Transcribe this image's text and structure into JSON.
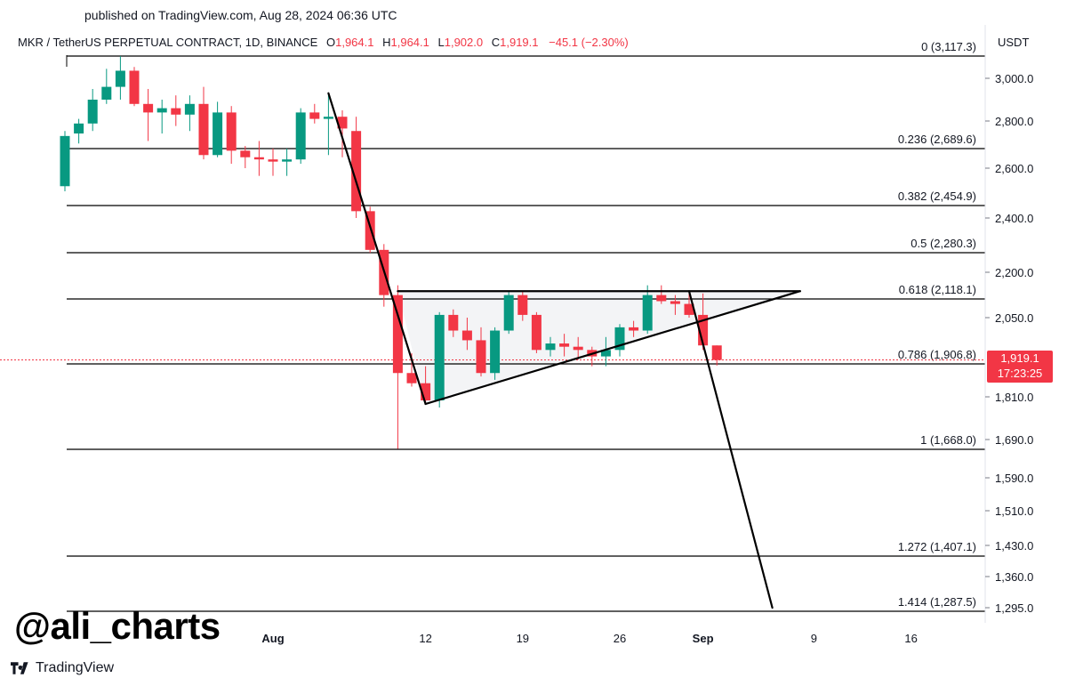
{
  "published": "published on TradingView.com, Aug 28, 2024 06:36 UTC",
  "header": {
    "symbol": "MKR / TetherUS PERPETUAL CONTRACT, 1D, BINANCE",
    "o_label": "O",
    "o_value": "1,964.1",
    "h_label": "H",
    "h_value": "1,964.1",
    "l_label": "L",
    "l_value": "1,902.0",
    "c_label": "C",
    "c_value": "1,919.1",
    "change": "−45.1 (−2.30%)"
  },
  "currency": "USDT",
  "last_price": {
    "price": "1,919.1",
    "countdown": "17:23:25"
  },
  "watermark": "@ali_charts",
  "brand": "TradingView",
  "colors": {
    "up": "#089981",
    "down": "#f23645",
    "line": "#000000",
    "triangle_fill": "#e9ebef"
  },
  "chart_data": {
    "type": "candlestick",
    "y_ticks": [
      "3,000.0",
      "2,800.0",
      "2,600.0",
      "2,400.0",
      "2,200.0",
      "2,050.0",
      "1,810.0",
      "1,690.0",
      "1,590.0",
      "1,510.0",
      "1,430.0",
      "1,360.0",
      "1,295.0"
    ],
    "x_ticks": [
      "Aug",
      "12",
      "19",
      "26",
      "Sep",
      "9",
      "16"
    ],
    "fib_levels": [
      {
        "label": "0 (3,117.3)",
        "value": 3117.3
      },
      {
        "label": "0.236 (2,689.6)",
        "value": 2689.6
      },
      {
        "label": "0.382 (2,454.9)",
        "value": 2454.9
      },
      {
        "label": "0.5 (2,280.3)",
        "value": 2280.3
      },
      {
        "label": "0.618 (2,118.1)",
        "value": 2118.1
      },
      {
        "label": "0.786 (1,906.8)",
        "value": 1906.8
      },
      {
        "label": "1 (1,668.0)",
        "value": 1668.0
      },
      {
        "label": "1.272 (1,407.1)",
        "value": 1407.1
      },
      {
        "label": "1.414 (1,287.5)",
        "value": 1287.5
      }
    ],
    "candles": [
      {
        "date": "2024-07-17",
        "o": 2530,
        "h": 2760,
        "l": 2510,
        "c": 2740
      },
      {
        "date": "2024-07-18",
        "o": 2750,
        "h": 2810,
        "l": 2710,
        "c": 2790
      },
      {
        "date": "2024-07-19",
        "o": 2790,
        "h": 2950,
        "l": 2760,
        "c": 2900
      },
      {
        "date": "2024-07-20",
        "o": 2900,
        "h": 3050,
        "l": 2880,
        "c": 2960
      },
      {
        "date": "2024-07-21",
        "o": 2960,
        "h": 3117,
        "l": 2900,
        "c": 3040
      },
      {
        "date": "2024-07-22",
        "o": 3040,
        "h": 3060,
        "l": 2870,
        "c": 2880
      },
      {
        "date": "2024-07-23",
        "o": 2880,
        "h": 2950,
        "l": 2720,
        "c": 2840
      },
      {
        "date": "2024-07-24",
        "o": 2840,
        "h": 2900,
        "l": 2750,
        "c": 2860
      },
      {
        "date": "2024-07-25",
        "o": 2860,
        "h": 2920,
        "l": 2780,
        "c": 2830
      },
      {
        "date": "2024-07-26",
        "o": 2830,
        "h": 2920,
        "l": 2760,
        "c": 2880
      },
      {
        "date": "2024-07-27",
        "o": 2880,
        "h": 2960,
        "l": 2640,
        "c": 2660
      },
      {
        "date": "2024-07-28",
        "o": 2660,
        "h": 2890,
        "l": 2650,
        "c": 2840
      },
      {
        "date": "2024-07-29",
        "o": 2840,
        "h": 2870,
        "l": 2620,
        "c": 2680
      },
      {
        "date": "2024-07-30",
        "o": 2680,
        "h": 2700,
        "l": 2600,
        "c": 2650
      },
      {
        "date": "2024-07-31",
        "o": 2650,
        "h": 2720,
        "l": 2570,
        "c": 2640
      },
      {
        "date": "2024-08-01",
        "o": 2640,
        "h": 2690,
        "l": 2570,
        "c": 2630
      },
      {
        "date": "2024-08-02",
        "o": 2630,
        "h": 2690,
        "l": 2570,
        "c": 2640
      },
      {
        "date": "2024-08-03",
        "o": 2640,
        "h": 2860,
        "l": 2620,
        "c": 2840
      },
      {
        "date": "2024-08-04",
        "o": 2840,
        "h": 2880,
        "l": 2790,
        "c": 2810
      },
      {
        "date": "2024-08-05",
        "o": 2810,
        "h": 2930,
        "l": 2660,
        "c": 2820
      },
      {
        "date": "2024-08-06",
        "o": 2820,
        "h": 2850,
        "l": 2650,
        "c": 2770
      },
      {
        "date": "2024-08-07",
        "o": 2760,
        "h": 2820,
        "l": 2400,
        "c": 2430
      },
      {
        "date": "2024-08-08",
        "o": 2430,
        "h": 2450,
        "l": 2280,
        "c": 2290
      },
      {
        "date": "2024-08-09",
        "o": 2290,
        "h": 2310,
        "l": 2090,
        "c": 2130
      },
      {
        "date": "2024-08-10",
        "o": 2130,
        "h": 2160,
        "l": 1669,
        "c": 1880
      },
      {
        "date": "2024-08-11",
        "o": 1880,
        "h": 1940,
        "l": 1840,
        "c": 1850
      },
      {
        "date": "2024-08-12",
        "o": 1850,
        "h": 1900,
        "l": 1790,
        "c": 1800
      },
      {
        "date": "2024-08-13",
        "o": 1800,
        "h": 2070,
        "l": 1780,
        "c": 2060
      },
      {
        "date": "2024-08-14",
        "o": 2060,
        "h": 2080,
        "l": 1990,
        "c": 2010
      },
      {
        "date": "2024-08-15",
        "o": 2010,
        "h": 2050,
        "l": 1950,
        "c": 1980
      },
      {
        "date": "2024-08-16",
        "o": 1980,
        "h": 2020,
        "l": 1870,
        "c": 1880
      },
      {
        "date": "2024-08-17",
        "o": 1880,
        "h": 2020,
        "l": 1860,
        "c": 2010
      },
      {
        "date": "2024-08-18",
        "o": 2010,
        "h": 2140,
        "l": 2000,
        "c": 2130
      },
      {
        "date": "2024-08-19",
        "o": 2130,
        "h": 2140,
        "l": 2040,
        "c": 2060
      },
      {
        "date": "2024-08-20",
        "o": 2060,
        "h": 2070,
        "l": 1940,
        "c": 1950
      },
      {
        "date": "2024-08-21",
        "o": 1950,
        "h": 1990,
        "l": 1930,
        "c": 1970
      },
      {
        "date": "2024-08-22",
        "o": 1970,
        "h": 2000,
        "l": 1930,
        "c": 1960
      },
      {
        "date": "2024-08-23",
        "o": 1960,
        "h": 1990,
        "l": 1920,
        "c": 1950
      },
      {
        "date": "2024-08-24",
        "o": 1950,
        "h": 1960,
        "l": 1900,
        "c": 1930
      },
      {
        "date": "2024-08-25",
        "o": 1930,
        "h": 1990,
        "l": 1900,
        "c": 1950
      },
      {
        "date": "2024-08-26",
        "o": 1950,
        "h": 2030,
        "l": 1930,
        "c": 2020
      },
      {
        "date": "2024-08-27",
        "o": 2020,
        "h": 2040,
        "l": 1990,
        "c": 2010
      },
      {
        "date": "2024-08-28",
        "o": 2010,
        "h": 2160,
        "l": 2000,
        "c": 2130
      },
      {
        "date": "2024-08-29",
        "o": 2130,
        "h": 2160,
        "l": 2100,
        "c": 2110
      },
      {
        "date": "2024-08-30",
        "o": 2110,
        "h": 2130,
        "l": 2060,
        "c": 2100
      },
      {
        "date": "2024-08-31",
        "o": 2100,
        "h": 2140,
        "l": 2050,
        "c": 2060
      },
      {
        "date": "2024-09-01",
        "o": 2060,
        "h": 2135,
        "l": 1950,
        "c": 1964
      },
      {
        "date": "2024-09-02",
        "o": 1964,
        "h": 1964,
        "l": 1902,
        "c": 1919
      }
    ],
    "trend_lines": [
      {
        "from": {
          "date": "2024-08-05",
          "price": 2930
        },
        "to": {
          "date": "2024-08-12",
          "price": 1790
        }
      },
      {
        "from": {
          "date": "2024-08-12",
          "price": 1790
        },
        "to": {
          "date": "2024-09-08",
          "price": 2142
        }
      },
      {
        "from": {
          "date": "2024-08-10",
          "price": 2142
        },
        "to": {
          "date": "2024-09-08",
          "price": 2142
        }
      },
      {
        "from": {
          "date": "2024-08-31",
          "price": 2142
        },
        "to": {
          "date": "2024-09-06",
          "price": 1295
        }
      }
    ],
    "triangle": [
      {
        "date": "2024-08-10",
        "price": 2142
      },
      {
        "date": "2024-09-08",
        "price": 2142
      },
      {
        "date": "2024-08-12",
        "price": 1790
      }
    ]
  }
}
